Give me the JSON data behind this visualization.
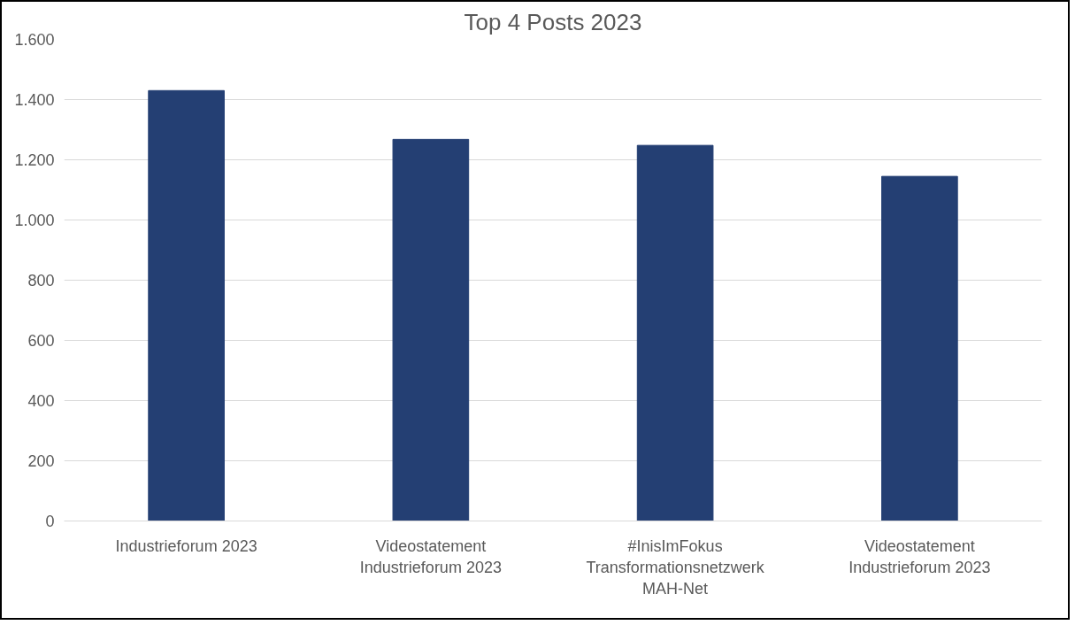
{
  "chart_data": {
    "type": "bar",
    "title": "Top 4 Posts 2023",
    "categories": [
      "Industrieforum 2023",
      "Videostatement\nIndustrieforum 2023",
      "#InisImFokus\nTransformationsnetzwerk\nMAH-Net",
      "Videostatement\nIndustrieforum 2023"
    ],
    "values": [
      1430,
      1268,
      1248,
      1145
    ],
    "color": "#243f73",
    "ylim": [
      0,
      1600
    ],
    "yticks": [
      0,
      200,
      400,
      600,
      800,
      {
        "value": 1000,
        "label": "1.000"
      },
      {
        "value": 1200,
        "label": "1.200"
      },
      {
        "value": 1400,
        "label": "1.400"
      },
      {
        "value": 1600,
        "label": "1.600"
      }
    ],
    "grid": "y"
  }
}
